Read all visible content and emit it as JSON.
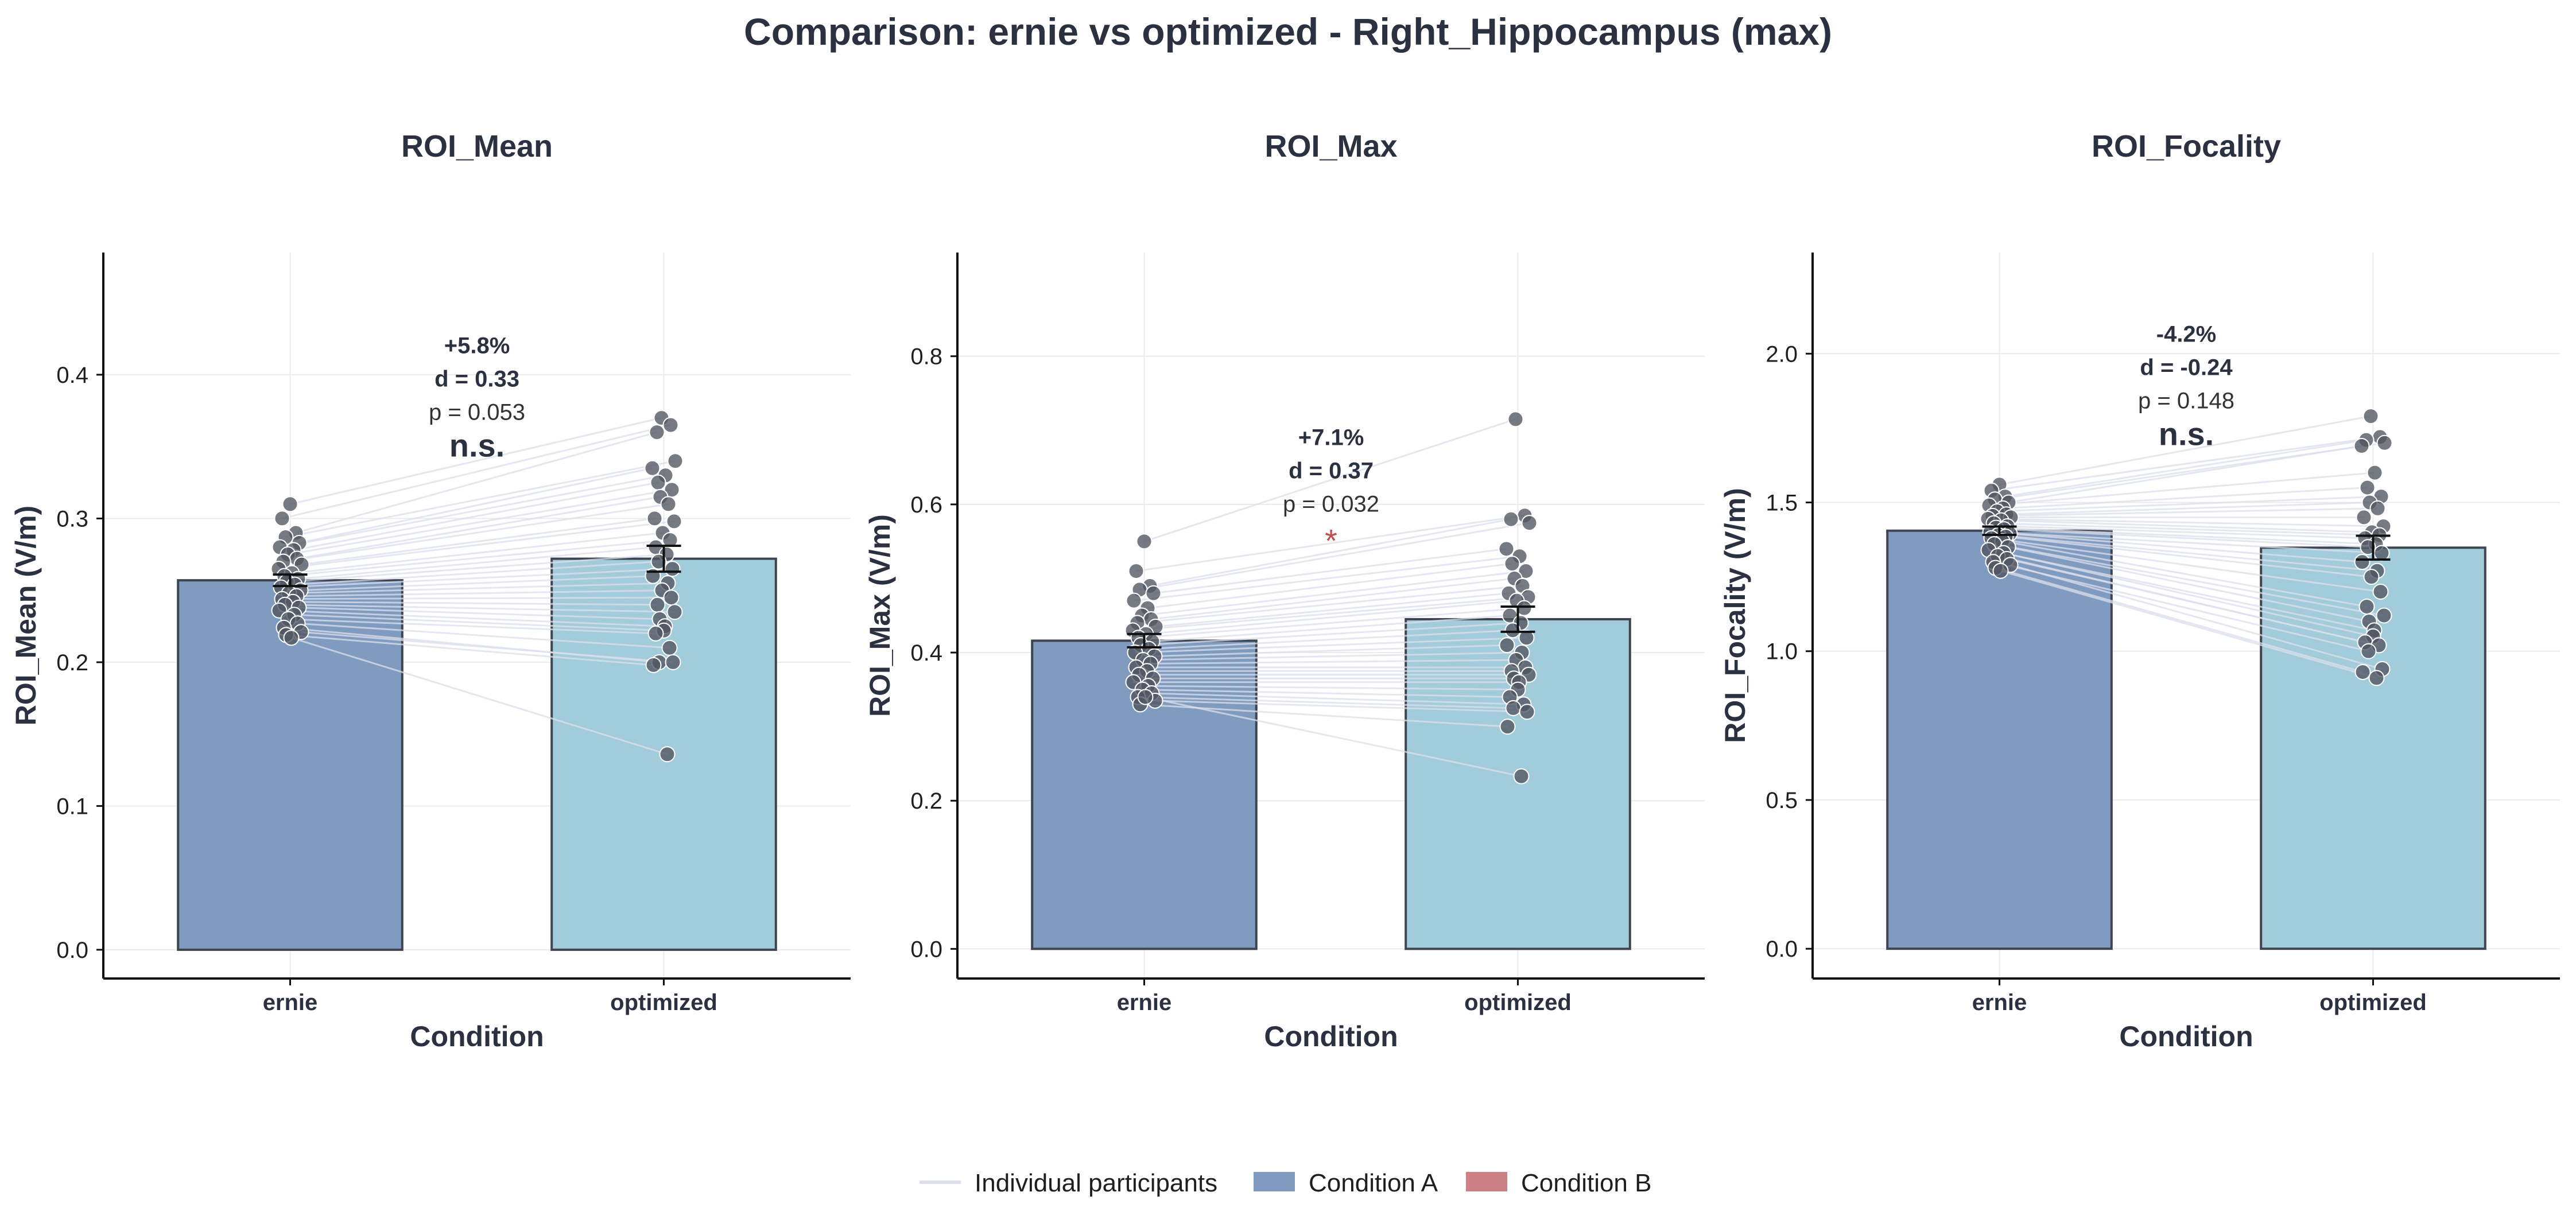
{
  "chart_data": {
    "type": "bar",
    "title": "Comparison: ernie vs optimized - Right_Hippocampus (max)",
    "colors": {
      "condition_a": "#7f9bbf",
      "condition_b_bar": "#a2ccd9",
      "legend_condition_b": "#cc7f86",
      "point": "#505560",
      "pair_line": "#dcdfec",
      "text": "#2b3140",
      "sig_star": "#c0504d"
    },
    "legend": {
      "placement": "bottom-center",
      "entries": [
        {
          "label": "Individual participants",
          "type": "line",
          "color": "#dcdfec"
        },
        {
          "label": "Condition A",
          "type": "patch",
          "color": "#7f9bbf"
        },
        {
          "label": "Condition B",
          "type": "patch",
          "color": "#cc7f86"
        }
      ]
    },
    "panels": [
      {
        "title": "ROI_Mean",
        "xlabel": "Condition",
        "ylabel": "ROI_Mean (V/m)",
        "categories": [
          "ernie",
          "optimized"
        ],
        "ylim": [
          -0.02,
          0.485
        ],
        "yticks": [
          0.0,
          0.1,
          0.2,
          0.3,
          0.4
        ],
        "tick_labels": [
          "0.0",
          "0.1",
          "0.2",
          "0.3",
          "0.4"
        ],
        "grid": true,
        "means": [
          0.257,
          0.272
        ],
        "sem": [
          0.004,
          0.009
        ],
        "annotation": {
          "pct": "+5.8%",
          "d": "d = 0.33",
          "p": "p = 0.053",
          "sig": "n.s.",
          "anchor_y": 0.415
        },
        "participants": {
          "ernie": [
            0.31,
            0.3,
            0.29,
            0.287,
            0.283,
            0.28,
            0.278,
            0.275,
            0.272,
            0.27,
            0.268,
            0.265,
            0.262,
            0.26,
            0.258,
            0.256,
            0.254,
            0.252,
            0.25,
            0.248,
            0.246,
            0.244,
            0.242,
            0.24,
            0.238,
            0.236,
            0.233,
            0.23,
            0.227,
            0.224,
            0.221,
            0.219,
            0.217
          ],
          "optimized": [
            0.37,
            0.365,
            0.36,
            0.34,
            0.335,
            0.33,
            0.325,
            0.32,
            0.315,
            0.31,
            0.3,
            0.298,
            0.29,
            0.285,
            0.28,
            0.275,
            0.27,
            0.265,
            0.26,
            0.255,
            0.25,
            0.245,
            0.24,
            0.235,
            0.23,
            0.225,
            0.222,
            0.22,
            0.21,
            0.2,
            0.2,
            0.198,
            0.136
          ]
        }
      },
      {
        "title": "ROI_Max",
        "xlabel": "Condition",
        "ylabel": "ROI_Max (V/m)",
        "categories": [
          "ernie",
          "optimized"
        ],
        "ylim": [
          -0.04,
          0.94
        ],
        "yticks": [
          0.0,
          0.2,
          0.4,
          0.6,
          0.8
        ],
        "tick_labels": [
          "0.0",
          "0.2",
          "0.4",
          "0.6",
          "0.8"
        ],
        "grid": true,
        "means": [
          0.416,
          0.445
        ],
        "sem": [
          0.009,
          0.017
        ],
        "annotation": {
          "pct": "+7.1%",
          "d": "d = 0.37",
          "p": "p = 0.032",
          "sig": "*",
          "anchor_y": 0.68
        },
        "participants": {
          "ernie": [
            0.55,
            0.51,
            0.49,
            0.485,
            0.48,
            0.47,
            0.46,
            0.45,
            0.445,
            0.44,
            0.435,
            0.43,
            0.425,
            0.42,
            0.415,
            0.41,
            0.405,
            0.4,
            0.395,
            0.39,
            0.385,
            0.38,
            0.375,
            0.37,
            0.365,
            0.36,
            0.355,
            0.35,
            0.345,
            0.34,
            0.335,
            0.33,
            0.34
          ],
          "optimized": [
            0.715,
            0.585,
            0.58,
            0.575,
            0.54,
            0.53,
            0.52,
            0.51,
            0.5,
            0.49,
            0.48,
            0.475,
            0.47,
            0.46,
            0.45,
            0.44,
            0.43,
            0.42,
            0.41,
            0.4,
            0.39,
            0.38,
            0.375,
            0.37,
            0.365,
            0.36,
            0.35,
            0.34,
            0.33,
            0.325,
            0.32,
            0.3,
            0.233
          ]
        }
      },
      {
        "title": "ROI_Focality",
        "xlabel": "Condition",
        "ylabel": "ROI_Focality (V/m)",
        "categories": [
          "ernie",
          "optimized"
        ],
        "ylim": [
          -0.1,
          2.34
        ],
        "yticks": [
          0.0,
          0.5,
          1.0,
          1.5,
          2.0
        ],
        "tick_labels": [
          "0.0",
          "0.5",
          "1.0",
          "1.5",
          "2.0"
        ],
        "grid": true,
        "means": [
          1.405,
          1.348
        ],
        "sem": [
          0.014,
          0.04
        ],
        "annotation": {
          "pct": "-4.2%",
          "d": "d = -0.24",
          "p": "p = 0.148",
          "sig": "n.s.",
          "anchor_y": 2.04
        },
        "participants": {
          "ernie": [
            1.56,
            1.54,
            1.52,
            1.51,
            1.5,
            1.49,
            1.48,
            1.47,
            1.46,
            1.455,
            1.45,
            1.445,
            1.44,
            1.43,
            1.42,
            1.415,
            1.41,
            1.4,
            1.395,
            1.39,
            1.385,
            1.38,
            1.37,
            1.36,
            1.35,
            1.34,
            1.33,
            1.32,
            1.31,
            1.3,
            1.29,
            1.28,
            1.27
          ],
          "optimized": [
            1.79,
            1.72,
            1.71,
            1.7,
            1.69,
            1.6,
            1.55,
            1.52,
            1.5,
            1.48,
            1.45,
            1.42,
            1.4,
            1.39,
            1.38,
            1.36,
            1.35,
            1.33,
            1.3,
            1.27,
            1.25,
            1.2,
            1.15,
            1.12,
            1.1,
            1.07,
            1.05,
            1.03,
            1.02,
            1.0,
            0.94,
            0.93,
            0.91
          ]
        }
      }
    ]
  }
}
